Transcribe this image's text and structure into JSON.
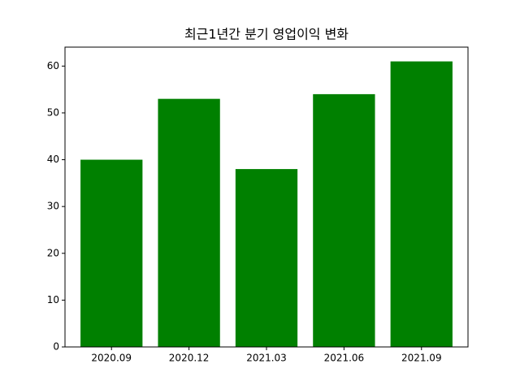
{
  "chart_data": {
    "type": "bar",
    "title": "최근1년간 분기 영업이익 변화",
    "categories": [
      "2020.09",
      "2020.12",
      "2021.03",
      "2021.06",
      "2021.09"
    ],
    "values": [
      40,
      53,
      38,
      54,
      61
    ],
    "color": "#008000",
    "ylim": [
      0,
      64.05
    ],
    "yticks": [
      0,
      10,
      20,
      30,
      40,
      50,
      60
    ],
    "grid": false
  }
}
